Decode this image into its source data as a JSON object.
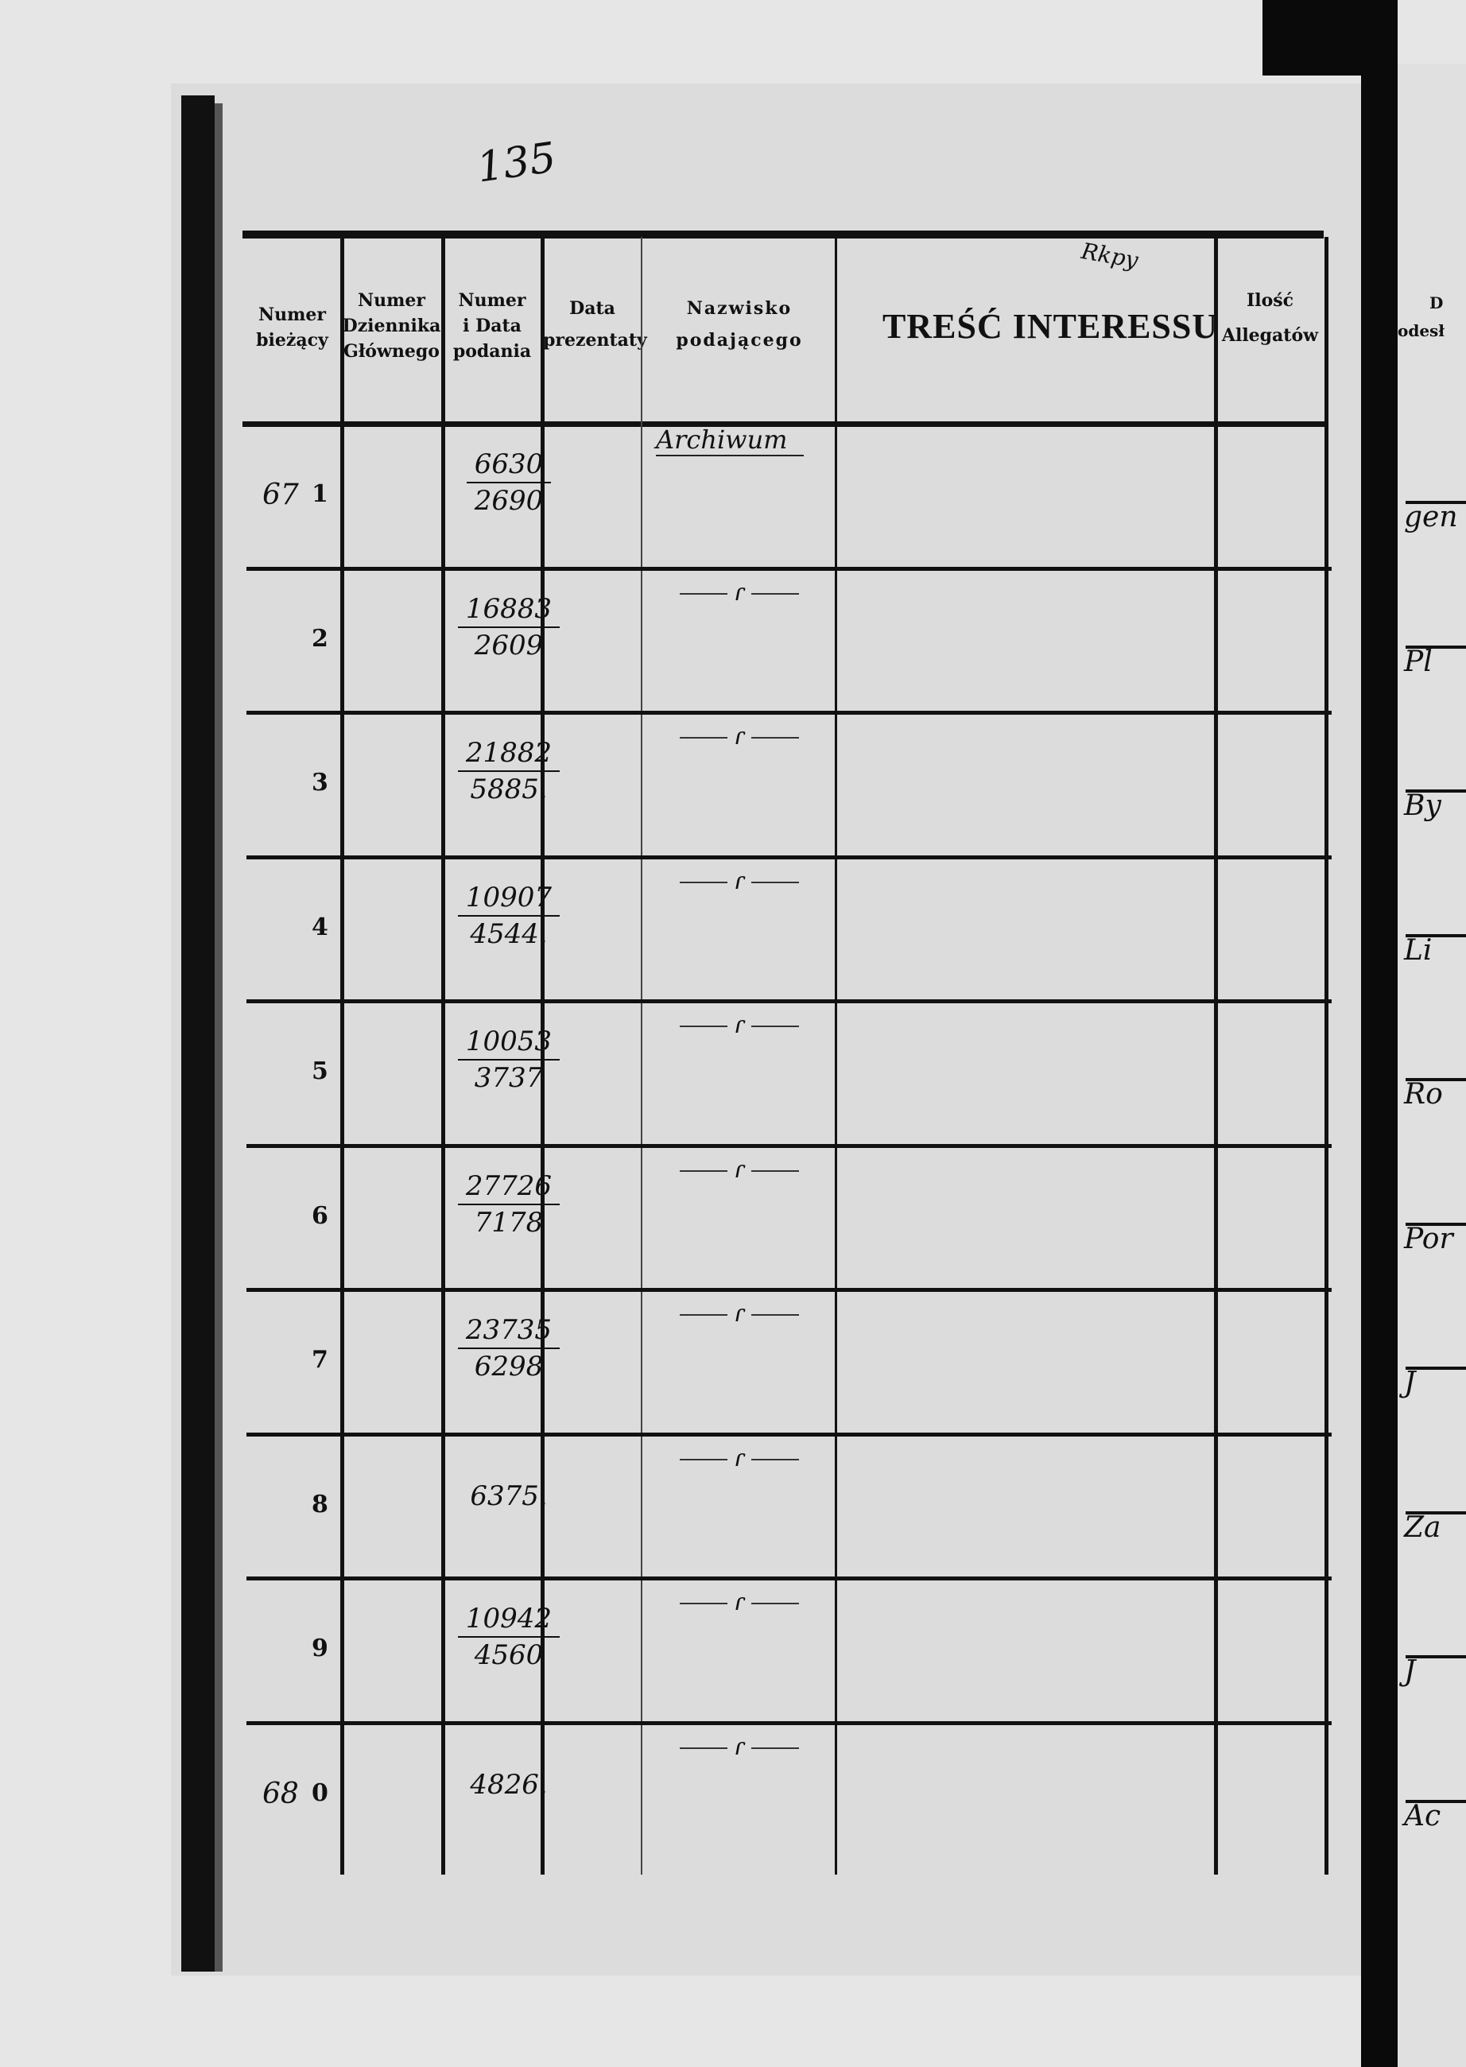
{
  "page_number": "135",
  "header": {
    "col1": [
      "Numer",
      "bieżący"
    ],
    "col2": [
      "Numer",
      "Dziennika",
      "Głównego"
    ],
    "col3": [
      "Numer",
      "i Data",
      "podania"
    ],
    "col4": [
      "Data",
      "prezentaty"
    ],
    "col5": [
      "Nazwisko",
      "podającego"
    ],
    "col6": "TREŚĆ INTERESSU",
    "col7": [
      "Ilość",
      "Allegatów"
    ]
  },
  "stamp_mark": "Rkpy",
  "rows": [
    {
      "no": "1",
      "margin": "67",
      "number": "6630",
      "date": "2690",
      "name": "Archiwum"
    },
    {
      "no": "2",
      "number": "16883",
      "date": "2609",
      "name": "ditto"
    },
    {
      "no": "3",
      "number": "21882",
      "date": "5885.",
      "name": "ditto"
    },
    {
      "no": "4",
      "number": "10907",
      "date": "4544.",
      "name": "ditto"
    },
    {
      "no": "5",
      "number": "10053",
      "date": "3737",
      "name": "ditto"
    },
    {
      "no": "6",
      "number": "27726",
      "date": "7178",
      "name": "ditto"
    },
    {
      "no": "7",
      "number": "23735",
      "date": "6298",
      "name": "ditto"
    },
    {
      "no": "8",
      "number": "6375.",
      "date": "",
      "name": "ditto"
    },
    {
      "no": "9",
      "number": "10942",
      "date": "4560",
      "name": "ditto"
    },
    {
      "no": "0",
      "margin": "68",
      "number": "4826.",
      "date": "",
      "name": "ditto"
    }
  ],
  "ditto_mark": "ɾ",
  "right_page": {
    "header_fragment": [
      "D",
      "odesł"
    ],
    "row_fragments": [
      "gen",
      "Pl",
      "By",
      "Li",
      "Ro",
      "Por",
      "J",
      "Za",
      "J",
      "Ac"
    ]
  }
}
